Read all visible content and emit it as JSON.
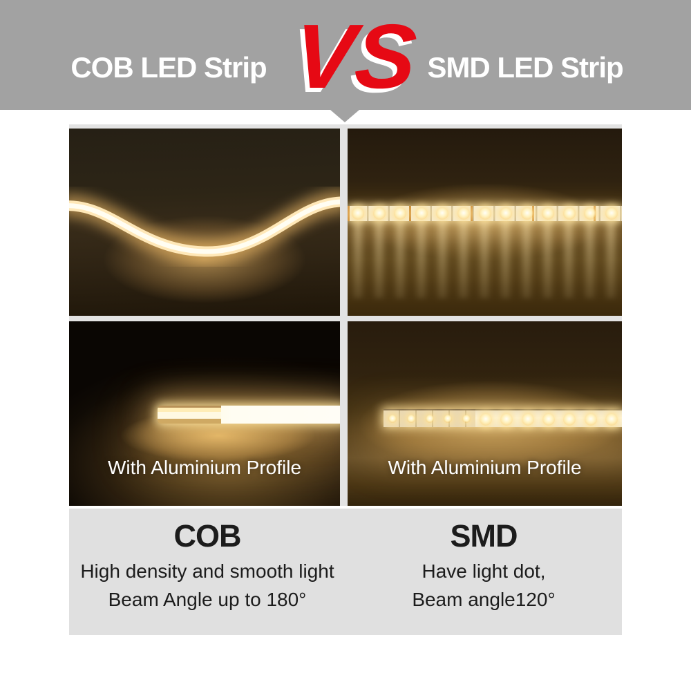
{
  "header": {
    "left_title": "COB LED Strip",
    "vs_label": "VS",
    "right_title": "SMD LED Strip"
  },
  "photos": {
    "cob_profile": {
      "caption": "With Aluminium Profile"
    },
    "smd_profile": {
      "caption": "With Aluminium Profile"
    }
  },
  "comparison": {
    "cob": {
      "title": "COB",
      "line1": "High density and smooth light",
      "line2": "Beam Angle up to 180°"
    },
    "smd": {
      "title": "SMD",
      "line1": "Have light dot,",
      "line2": "Beam angle120°"
    }
  },
  "colors": {
    "banner_bg": "#a2a2a2",
    "vs_red": "#e60914",
    "frame_bg": "#e3e3e3",
    "panel_bg": "#e0e0e0",
    "warm_light": "#ffe8b8",
    "title_text": "#ffffff",
    "panel_text": "#1c1c1c"
  }
}
